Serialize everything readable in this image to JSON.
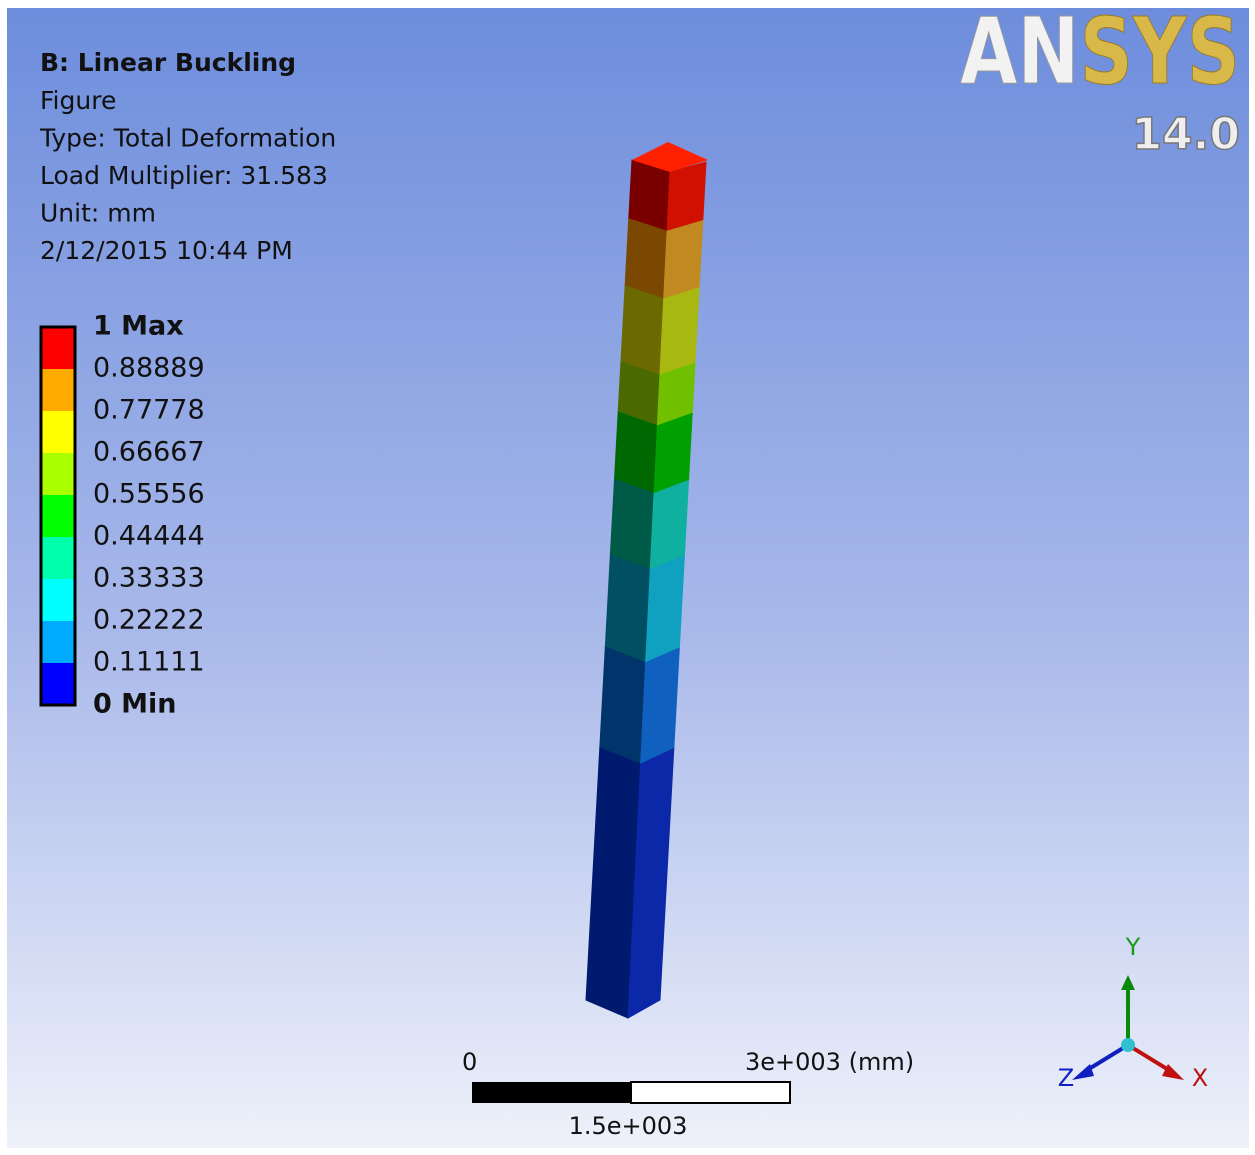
{
  "header": {
    "title": "B: Linear Buckling",
    "lines": [
      "Figure",
      "Type: Total Deformation",
      "Load Multiplier: 31.583",
      "Unit: mm",
      "2/12/2015 10:44 PM"
    ]
  },
  "legend": {
    "labels": [
      "1 Max",
      "0.88889",
      "0.77778",
      "0.66667",
      "0.55556",
      "0.44444",
      "0.33333",
      "0.22222",
      "0.11111",
      "0 Min"
    ],
    "colors": [
      "#ff0000",
      "#ffaa00",
      "#ffff00",
      "#aaff00",
      "#00ff00",
      "#00ffaa",
      "#00ffff",
      "#00aaff",
      "#0000ff"
    ]
  },
  "scale_bar": {
    "start": "0",
    "end": "3e+003 (mm)",
    "middle": "1.5e+003"
  },
  "logo": {
    "brand_a": "AN",
    "brand_b": "SYS",
    "version": "14.0"
  },
  "triad": {
    "y": "Y",
    "x": "X",
    "z": "Z"
  }
}
